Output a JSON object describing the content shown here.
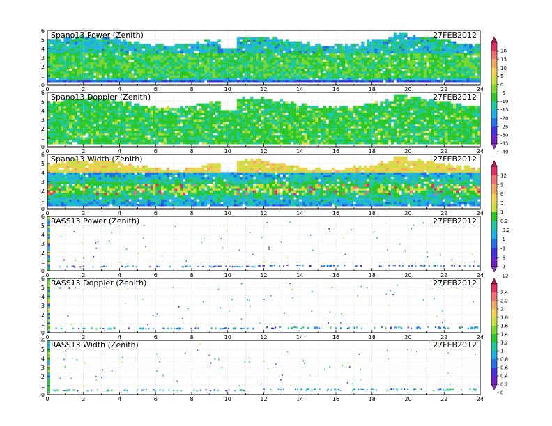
{
  "chart_data": {
    "type": "heatmap",
    "x_ticks": [
      "0",
      "2",
      "4",
      "6",
      "8",
      "10",
      "12",
      "14",
      "16",
      "18",
      "20",
      "22",
      "24"
    ],
    "y_ticks": [
      "0",
      "1",
      "2",
      "3",
      "4",
      "5",
      "6"
    ],
    "xlim": [
      0,
      24
    ],
    "ylim": [
      0,
      6
    ],
    "grid": true,
    "panels": [
      {
        "title": "Spano13 Power (Zenith)",
        "date": "27FEB2012",
        "colorbar": 0,
        "kind": "spano",
        "field": "power"
      },
      {
        "title": "Spano13 Doppler (Zenith)",
        "date": "27FEB2012",
        "colorbar": 0,
        "kind": "spano",
        "field": "doppler"
      },
      {
        "title": "Spano13 Width (Zenith)",
        "date": "27FEB2012",
        "colorbar": 1,
        "kind": "spano",
        "field": "width"
      },
      {
        "title": "RASS13 Power (Zenith)",
        "date": "27FEB2012",
        "colorbar": 1,
        "kind": "rass",
        "field": "power"
      },
      {
        "title": "RASS13 Doppler (Zenith)",
        "date": "27FEB2012",
        "colorbar": 2,
        "kind": "rass",
        "field": "doppler"
      },
      {
        "title": "RASS13 Width (Zenith)",
        "date": "27FEB2012",
        "colorbar": 2,
        "kind": "rass",
        "field": "width"
      }
    ],
    "colorbars": [
      {
        "labels": [
          "20",
          "15",
          "10",
          "5",
          "0",
          "-5",
          "-10",
          "-15",
          "-20",
          "-25",
          "-30",
          "-35",
          "-40"
        ],
        "colors": [
          "#b01850",
          "#e03060",
          "#f07070",
          "#f0a860",
          "#f0d050",
          "#c8e040",
          "#78d830",
          "#28c828",
          "#20c8a0",
          "#20b0e8",
          "#2070e8",
          "#4030e0",
          "#7020c8",
          "#9030c0"
        ]
      },
      {
        "labels": [
          "12",
          "9",
          "6",
          "3",
          "1",
          "0.2",
          "-0.2",
          "-1",
          "-3",
          "-6",
          "-9",
          "-12"
        ],
        "colors": [
          "#b01850",
          "#e03060",
          "#f07070",
          "#f0a860",
          "#f0d050",
          "#c8e040",
          "#28c828",
          "#20c8a0",
          "#20b0e8",
          "#2070e8",
          "#4030e0",
          "#7020c8",
          "#9030c0"
        ]
      },
      {
        "labels": [
          "2.4",
          "2.2",
          "2",
          "1.8",
          "1.6",
          "1.4",
          "1.2",
          "1",
          "0.8",
          "0.6",
          "0.4",
          "0.2",
          "0"
        ],
        "colors": [
          "#b01850",
          "#e03060",
          "#f07070",
          "#f0a860",
          "#f0d050",
          "#c8e040",
          "#78d830",
          "#28c828",
          "#20c8a0",
          "#20b0e8",
          "#2070e8",
          "#4030e0",
          "#7020c8",
          "#9030c0"
        ]
      }
    ]
  }
}
